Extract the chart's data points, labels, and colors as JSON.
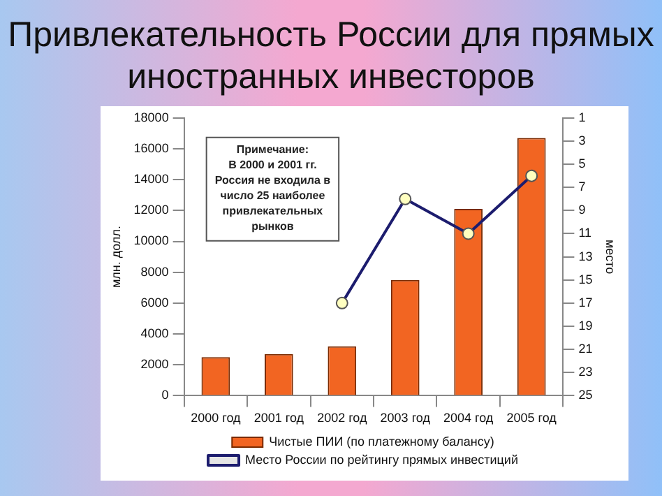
{
  "chart_data": {
    "type": "bar",
    "title": "Привлекательность России для прямых иностранных инвесторов",
    "ylabel": "млн. долл.",
    "y2label": "место",
    "categories": [
      "2000 год",
      "2001 год",
      "2002 год",
      "2003 год",
      "2004 год",
      "2005 год"
    ],
    "series": [
      {
        "name": "Чистые ПИИ (по платежному балансу)",
        "color": "#f26522",
        "values": [
          2500,
          2700,
          3200,
          7500,
          12100,
          16700
        ]
      },
      {
        "name": "Место России по рейтингу прямых инвестиций",
        "type": "line",
        "axis": "y2",
        "color": "#1c1c6e",
        "values": [
          null,
          null,
          17,
          8,
          11,
          6
        ]
      }
    ],
    "ylim": [
      0,
      18000
    ],
    "yticks": [
      0,
      2000,
      4000,
      6000,
      8000,
      10000,
      12000,
      14000,
      16000,
      18000
    ],
    "y2lim": [
      25,
      1
    ],
    "y2ticks": [
      1,
      3,
      5,
      7,
      9,
      11,
      13,
      15,
      17,
      19,
      21,
      23,
      25
    ],
    "annotations": [
      "Примечание:\nВ 2000 и 2001 гг.\nРоссия не входила в\nчисло 25 наиболее\nпривлекательных\nрынков"
    ],
    "marker": "circle",
    "grid": false,
    "legend": "bottom"
  }
}
